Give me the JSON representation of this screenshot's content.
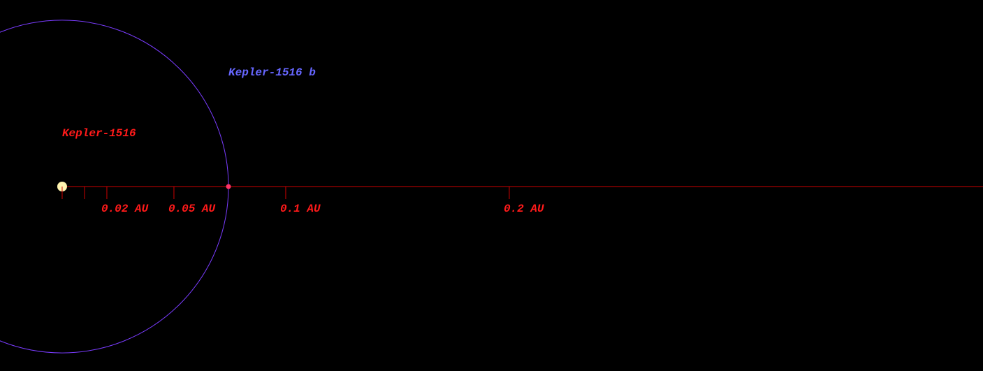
{
  "system": {
    "star": {
      "name": "Kepler-1516"
    },
    "planet": {
      "name": "Kepler-1516 b",
      "orbit_au": 0.0744
    },
    "axis": {
      "xlim": [
        -0.0278,
        0.4119
      ],
      "minor_ticks": [
        0,
        0.01
      ],
      "ticks": [
        {
          "value": 0.02,
          "label": "0.02 AU"
        },
        {
          "value": 0.05,
          "label": "0.05 AU"
        },
        {
          "value": 0.1,
          "label": "0.1 AU"
        },
        {
          "value": 0.2,
          "label": "0.2 AU"
        }
      ]
    }
  }
}
